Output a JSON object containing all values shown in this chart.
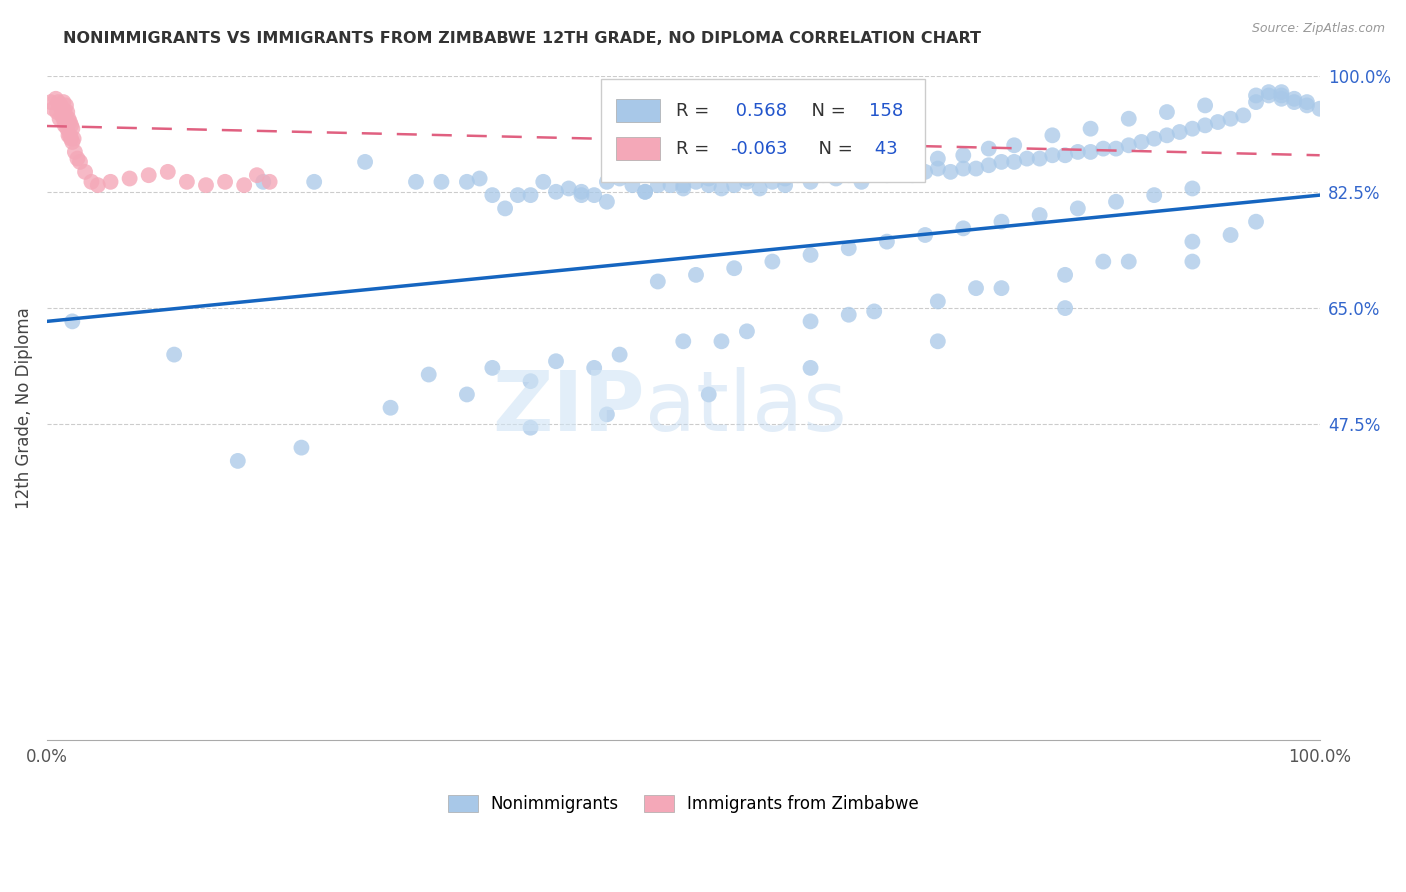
{
  "title": "NONIMMIGRANTS VS IMMIGRANTS FROM ZIMBABWE 12TH GRADE, NO DIPLOMA CORRELATION CHART",
  "source": "Source: ZipAtlas.com",
  "ylabel": "12th Grade, No Diploma",
  "r_blue": 0.568,
  "n_blue": 158,
  "r_pink": -0.063,
  "n_pink": 43,
  "xlim": [
    0,
    1
  ],
  "ylim": [
    0,
    1
  ],
  "y_tick_labels_right": [
    "100.0%",
    "82.5%",
    "65.0%",
    "47.5%"
  ],
  "y_tick_values_right": [
    1.0,
    0.825,
    0.65,
    0.475
  ],
  "blue_color": "#A8C8E8",
  "pink_color": "#F4A8B8",
  "line_blue": "#1565C0",
  "line_pink": "#E06080",
  "title_color": "#333333",
  "source_color": "#999999",
  "right_axis_color": "#3366CC",
  "blue_line_y_start": 0.63,
  "blue_line_y_end": 0.82,
  "pink_line_y_start": 0.924,
  "pink_line_y_end": 0.88,
  "blue_scatter_x": [
    0.02,
    0.1,
    0.17,
    0.21,
    0.25,
    0.29,
    0.31,
    0.33,
    0.34,
    0.35,
    0.37,
    0.38,
    0.39,
    0.4,
    0.41,
    0.42,
    0.43,
    0.44,
    0.45,
    0.46,
    0.47,
    0.48,
    0.49,
    0.5,
    0.51,
    0.52,
    0.53,
    0.54,
    0.55,
    0.56,
    0.57,
    0.58,
    0.59,
    0.6,
    0.61,
    0.62,
    0.63,
    0.64,
    0.65,
    0.66,
    0.67,
    0.68,
    0.69,
    0.7,
    0.71,
    0.72,
    0.73,
    0.74,
    0.75,
    0.76,
    0.77,
    0.78,
    0.79,
    0.8,
    0.81,
    0.82,
    0.83,
    0.84,
    0.85,
    0.86,
    0.87,
    0.88,
    0.89,
    0.9,
    0.91,
    0.92,
    0.93,
    0.94,
    0.95,
    0.95,
    0.96,
    0.96,
    0.97,
    0.97,
    0.97,
    0.98,
    0.98,
    0.99,
    0.99,
    1.0,
    0.36,
    0.42,
    0.44,
    0.47,
    0.5,
    0.52,
    0.55,
    0.58,
    0.6,
    0.63,
    0.65,
    0.67,
    0.7,
    0.72,
    0.74,
    0.76,
    0.79,
    0.82,
    0.85,
    0.88,
    0.91,
    0.48,
    0.51,
    0.54,
    0.57,
    0.6,
    0.63,
    0.66,
    0.69,
    0.72,
    0.75,
    0.78,
    0.81,
    0.84,
    0.87,
    0.9,
    0.3,
    0.35,
    0.4,
    0.45,
    0.5,
    0.55,
    0.6,
    0.65,
    0.7,
    0.75,
    0.8,
    0.85,
    0.9,
    0.95,
    0.27,
    0.33,
    0.38,
    0.43,
    0.53,
    0.63,
    0.73,
    0.83,
    0.93,
    0.15,
    0.2,
    0.38,
    0.44,
    0.52,
    0.6,
    0.7,
    0.8,
    0.9
  ],
  "blue_scatter_y": [
    0.63,
    0.58,
    0.84,
    0.84,
    0.87,
    0.84,
    0.84,
    0.84,
    0.845,
    0.82,
    0.82,
    0.82,
    0.84,
    0.825,
    0.83,
    0.825,
    0.82,
    0.84,
    0.845,
    0.835,
    0.825,
    0.835,
    0.835,
    0.835,
    0.84,
    0.845,
    0.83,
    0.835,
    0.845,
    0.83,
    0.84,
    0.835,
    0.85,
    0.84,
    0.85,
    0.845,
    0.85,
    0.84,
    0.855,
    0.85,
    0.855,
    0.85,
    0.855,
    0.86,
    0.855,
    0.86,
    0.86,
    0.865,
    0.87,
    0.87,
    0.875,
    0.875,
    0.88,
    0.88,
    0.885,
    0.885,
    0.89,
    0.89,
    0.895,
    0.9,
    0.905,
    0.91,
    0.915,
    0.92,
    0.925,
    0.93,
    0.935,
    0.94,
    0.96,
    0.97,
    0.97,
    0.975,
    0.975,
    0.97,
    0.965,
    0.965,
    0.96,
    0.96,
    0.955,
    0.95,
    0.8,
    0.82,
    0.81,
    0.825,
    0.83,
    0.835,
    0.84,
    0.845,
    0.855,
    0.86,
    0.865,
    0.87,
    0.875,
    0.88,
    0.89,
    0.895,
    0.91,
    0.92,
    0.935,
    0.945,
    0.955,
    0.69,
    0.7,
    0.71,
    0.72,
    0.73,
    0.74,
    0.75,
    0.76,
    0.77,
    0.78,
    0.79,
    0.8,
    0.81,
    0.82,
    0.83,
    0.55,
    0.56,
    0.57,
    0.58,
    0.6,
    0.615,
    0.63,
    0.645,
    0.66,
    0.68,
    0.7,
    0.72,
    0.75,
    0.78,
    0.5,
    0.52,
    0.54,
    0.56,
    0.6,
    0.64,
    0.68,
    0.72,
    0.76,
    0.42,
    0.44,
    0.47,
    0.49,
    0.52,
    0.56,
    0.6,
    0.65,
    0.72
  ],
  "pink_scatter_x": [
    0.003,
    0.005,
    0.007,
    0.008,
    0.009,
    0.01,
    0.01,
    0.011,
    0.012,
    0.012,
    0.013,
    0.013,
    0.014,
    0.014,
    0.015,
    0.015,
    0.016,
    0.016,
    0.017,
    0.017,
    0.018,
    0.018,
    0.019,
    0.019,
    0.02,
    0.02,
    0.021,
    0.022,
    0.024,
    0.026,
    0.03,
    0.035,
    0.04,
    0.05,
    0.065,
    0.08,
    0.095,
    0.11,
    0.125,
    0.14,
    0.155,
    0.165,
    0.175
  ],
  "pink_scatter_y": [
    0.96,
    0.95,
    0.965,
    0.945,
    0.96,
    0.955,
    0.935,
    0.955,
    0.95,
    0.94,
    0.96,
    0.935,
    0.945,
    0.925,
    0.955,
    0.93,
    0.945,
    0.92,
    0.935,
    0.91,
    0.93,
    0.91,
    0.925,
    0.905,
    0.92,
    0.9,
    0.905,
    0.885,
    0.875,
    0.87,
    0.855,
    0.84,
    0.835,
    0.84,
    0.845,
    0.85,
    0.855,
    0.84,
    0.835,
    0.84,
    0.835,
    0.85,
    0.84
  ]
}
